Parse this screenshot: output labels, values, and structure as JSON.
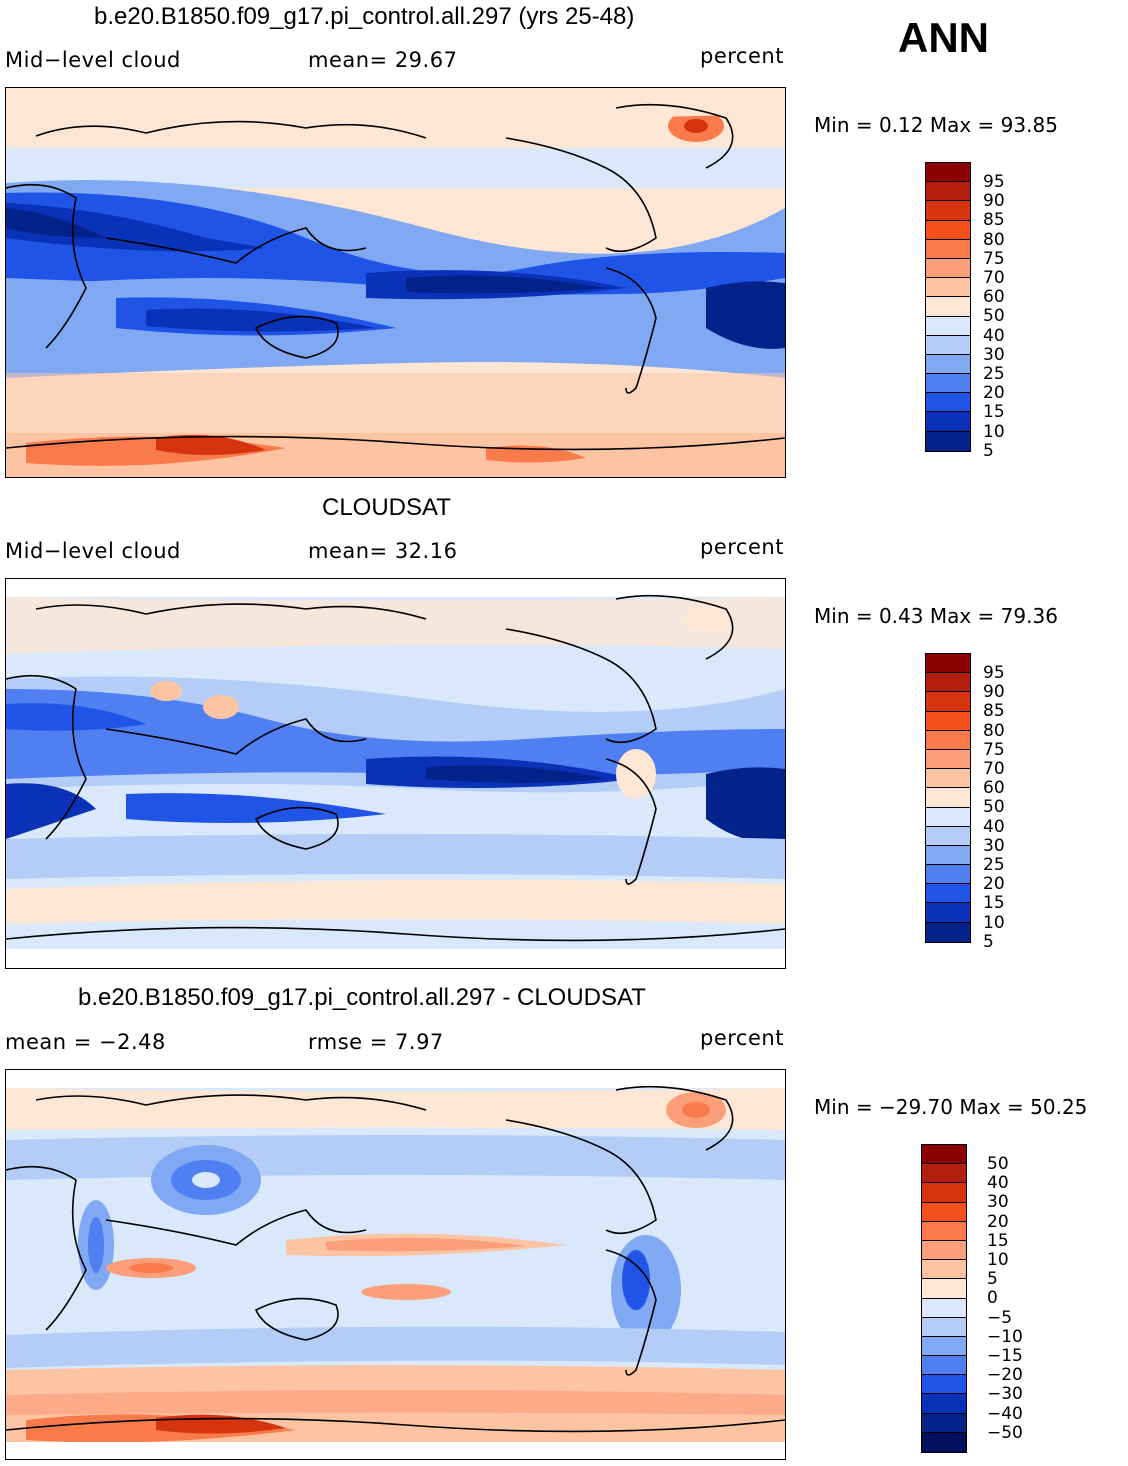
{
  "season": "ANN",
  "panels": [
    {
      "id": "model",
      "title": "b.e20.B1850.f09_g17.pi_control.all.297 (yrs 25-48)",
      "left_label": "Mid−level cloud",
      "center_label": "mean=   29.67",
      "units": "percent",
      "minmax": "Min =    0.12 Max =   93.85",
      "colorbar": {
        "labels": [
          "95",
          "90",
          "85",
          "80",
          "75",
          "70",
          "60",
          "50",
          "40",
          "30",
          "25",
          "20",
          "15",
          "10",
          "5"
        ],
        "colors": [
          "#8b0000",
          "#b31e0e",
          "#d6330f",
          "#f4511b",
          "#f97b4c",
          "#fb9f7a",
          "#fdc4a4",
          "#fde6d4",
          "#d9e9fb",
          "#b3cdf7",
          "#80a8f3",
          "#4f7ff1",
          "#1f54e6",
          "#0a32b8",
          "#03228a"
        ]
      }
    },
    {
      "id": "obs",
      "title": "CLOUDSAT",
      "left_label": "Mid−level cloud",
      "center_label": "mean=   32.16",
      "units": "percent",
      "minmax": "Min =    0.43 Max =   79.36",
      "colorbar": {
        "labels": [
          "95",
          "90",
          "85",
          "80",
          "75",
          "70",
          "60",
          "50",
          "40",
          "30",
          "25",
          "20",
          "15",
          "10",
          "5"
        ],
        "colors": [
          "#8b0000",
          "#b31e0e",
          "#d6330f",
          "#f4511b",
          "#f97b4c",
          "#fb9f7a",
          "#fdc4a4",
          "#fde6d4",
          "#d9e9fb",
          "#b3cdf7",
          "#80a8f3",
          "#4f7ff1",
          "#1f54e6",
          "#0a32b8",
          "#03228a"
        ]
      }
    },
    {
      "id": "diff",
      "title": "b.e20.B1850.f09_g17.pi_control.all.297 - CLOUDSAT",
      "left_label": "mean =   −2.48",
      "center_label": "rmse =     7.97",
      "units": "percent",
      "minmax": "Min = −29.70 Max =   50.25",
      "colorbar": {
        "labels": [
          "50",
          "40",
          "30",
          "20",
          "15",
          "10",
          "5",
          "0",
          "−5",
          "−10",
          "−15",
          "−20",
          "−30",
          "−40",
          "−50"
        ],
        "colors": [
          "#8b0000",
          "#b31e0e",
          "#d6330f",
          "#f4511b",
          "#f97b4c",
          "#fb9f7a",
          "#fdc4a4",
          "#fde6d4",
          "#d9e9fb",
          "#b3cdf7",
          "#80a8f3",
          "#4f7ff1",
          "#1f54e6",
          "#0a32b8",
          "#03228a",
          "#020f5c"
        ]
      }
    }
  ]
}
